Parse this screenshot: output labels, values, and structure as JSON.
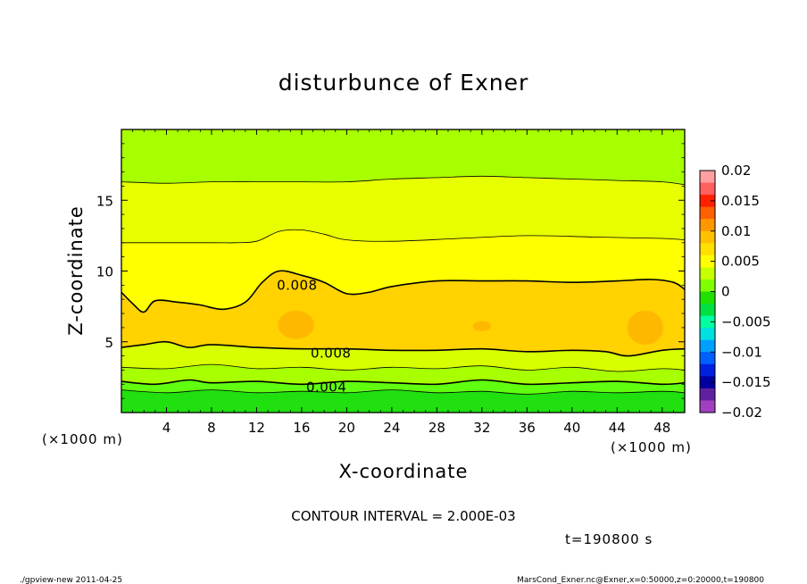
{
  "chart_data": {
    "type": "contour",
    "title": "disturbunce of Exner",
    "xlabel": "X-coordinate",
    "ylabel": "Z-coordinate",
    "x_unit_left": "(×1000 m)",
    "x_unit_right": "(×1000 m)",
    "xlim": [
      0,
      50
    ],
    "ylim": [
      0,
      20
    ],
    "x_ticks": [
      4,
      8,
      12,
      16,
      20,
      24,
      28,
      32,
      36,
      40,
      44,
      48
    ],
    "y_ticks": [
      5,
      10,
      15
    ],
    "contour_interval_text": "CONTOUR INTERVAL = 2.000E-03",
    "time_text": "t=190800 s",
    "contour_labels": [
      {
        "text": "0.008",
        "x": 15.6,
        "z": 9.0
      },
      {
        "text": "0.008",
        "x": 18.6,
        "z": 4.2
      },
      {
        "text": "0.004",
        "x": 18.2,
        "z": 1.8
      }
    ],
    "color_bar": {
      "labels": [
        "0.02",
        "0.015",
        "0.01",
        "0.005",
        "0",
        "−0.005",
        "−0.01",
        "−0.015",
        "−0.02"
      ],
      "colors_top_to_bottom": [
        "#ffa0a0",
        "#ff6060",
        "#ff2000",
        "#ff6000",
        "#ff9800",
        "#ffc000",
        "#ffe000",
        "#ffff00",
        "#c8ff00",
        "#80ff00",
        "#20e000",
        "#00e040",
        "#00ffa0",
        "#00e0e0",
        "#00a0ff",
        "#0060ff",
        "#0020e0",
        "#0000a0",
        "#6020a0",
        "#a040c0"
      ]
    },
    "bands_bottom_to_top": [
      {
        "level_from": 0.0,
        "level_to": 0.002,
        "color": "#20e010"
      },
      {
        "level_from": 0.002,
        "level_to": 0.004,
        "color": "#60ff10"
      },
      {
        "level_from": 0.004,
        "level_to": 0.006,
        "color": "#a8ff00"
      },
      {
        "level_from": 0.006,
        "level_to": 0.008,
        "color": "#ffff00"
      },
      {
        "level_from": 0.008,
        "level_to": 0.01,
        "color": "#ffd200"
      },
      {
        "level_from": 0.01,
        "level_to": 0.012,
        "color": "#ffb800"
      }
    ]
  },
  "footer": {
    "left": "./gpview-new   2011-04-25",
    "right": "MarsCond_Exner.nc@Exner,x=0:50000,z=0:20000,t=190800"
  }
}
